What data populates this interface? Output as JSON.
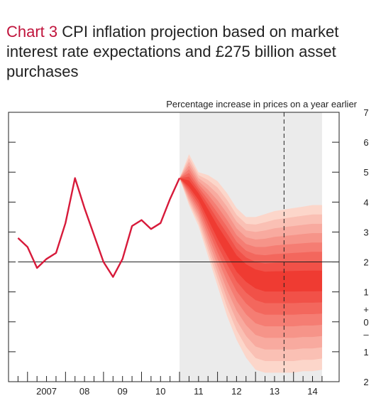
{
  "chart_data": {
    "type": "line",
    "title_number": "Chart 3",
    "title": "CPI inflation projection based on market interest rate expectations and £275 billion asset purchases",
    "unit_label": "Percentage increase in prices on a year earlier",
    "y_ticks": [
      {
        "value": 7,
        "label": "7"
      },
      {
        "value": 6,
        "label": "6"
      },
      {
        "value": 5,
        "label": "5"
      },
      {
        "value": 4,
        "label": "4"
      },
      {
        "value": 3,
        "label": "3"
      },
      {
        "value": 2,
        "label": "2"
      },
      {
        "value": 1,
        "label": "1"
      },
      {
        "value": 0,
        "label": "0"
      },
      {
        "value": -1,
        "label": "1"
      },
      {
        "value": -2,
        "label": "2"
      }
    ],
    "zero_sign_plus": "+",
    "zero_sign_minus": "–",
    "ylim": [
      -2,
      7
    ],
    "x_range": [
      2006.5,
      2015.2
    ],
    "x_labels": [
      {
        "x": 2007.5,
        "label": "2007"
      },
      {
        "x": 2008.5,
        "label": "08"
      },
      {
        "x": 2009.5,
        "label": "09"
      },
      {
        "x": 2010.5,
        "label": "10"
      },
      {
        "x": 2011.5,
        "label": "11"
      },
      {
        "x": 2012.5,
        "label": "12"
      },
      {
        "x": 2013.5,
        "label": "13"
      },
      {
        "x": 2014.5,
        "label": "14"
      }
    ],
    "reference_line": 2,
    "projection_start": 2011.0,
    "projection_end": 2014.75,
    "dashed_line_x": 2013.75,
    "colors": {
      "history": "#d71a3a",
      "projection_shade": "#ebebeb",
      "fan_base": "#ef3b32",
      "axis": "#222222"
    },
    "series": [
      {
        "values_x": [
          2006.75,
          2007.0,
          2007.25,
          2007.5,
          2007.75,
          2008.0,
          2008.25,
          2008.5,
          2008.75,
          2009.0,
          2009.25,
          2009.5,
          2009.75,
          2010.0,
          2010.25,
          2010.5,
          2010.75,
          2011.0
        ],
        "values_y": [
          2.8,
          2.5,
          1.8,
          2.1,
          2.3,
          3.3,
          4.8,
          3.8,
          2.9,
          2.0,
          1.5,
          2.1,
          3.2,
          3.4,
          3.1,
          3.3,
          4.1,
          4.8
        ]
      }
    ],
    "fan_chart": {
      "x": [
        2011.0,
        2011.25,
        2011.5,
        2011.75,
        2012.0,
        2012.25,
        2012.5,
        2012.75,
        2013.0,
        2013.25,
        2013.5,
        2013.75,
        2014.0,
        2014.25,
        2014.5,
        2014.75
      ],
      "central": [
        4.8,
        4.6,
        4.2,
        3.6,
        3.0,
        2.5,
        2.0,
        1.7,
        1.5,
        1.4,
        1.4,
        1.4,
        1.4,
        1.4,
        1.4,
        1.4
      ],
      "upper": [
        4.8,
        5.6,
        5.0,
        4.9,
        4.7,
        4.3,
        3.8,
        3.5,
        3.5,
        3.6,
        3.7,
        3.75,
        3.8,
        3.85,
        3.9,
        3.9
      ],
      "lower": [
        4.8,
        3.9,
        3.2,
        2.2,
        1.2,
        0.2,
        -0.6,
        -1.2,
        -1.6,
        -1.7,
        -1.7,
        -1.7,
        -1.7,
        -1.65,
        -1.65,
        -1.6
      ]
    }
  }
}
